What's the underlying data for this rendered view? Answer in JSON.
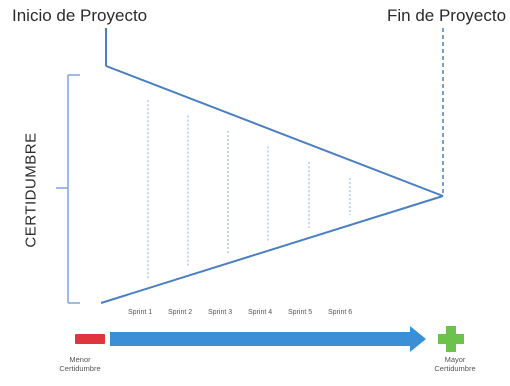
{
  "labels": {
    "start": "Inicio de Proyecto",
    "end": "Fin de Proyecto",
    "axis": "CERTIDUMBRE",
    "less_line1": "Menor",
    "less_line2": "Certidumbre",
    "more_line1": "Mayor",
    "more_line2": "Certidumbre"
  },
  "sprints": [
    "Sprint 1",
    "Sprint 2",
    "Sprint 3",
    "Sprint 4",
    "Sprint 5",
    "Sprint 6"
  ],
  "colors": {
    "triangle": "#4a7fc1",
    "dotted": "#9bbbe0",
    "bracket": "#7ea6d8",
    "arrow": "#3a8fd6",
    "minus": "#e0353d",
    "plus": "#6cc24a",
    "text": "#2b2b2b"
  },
  "icons": {
    "minus": "minus-icon",
    "plus": "plus-icon",
    "arrow": "arrow-right-icon"
  }
}
